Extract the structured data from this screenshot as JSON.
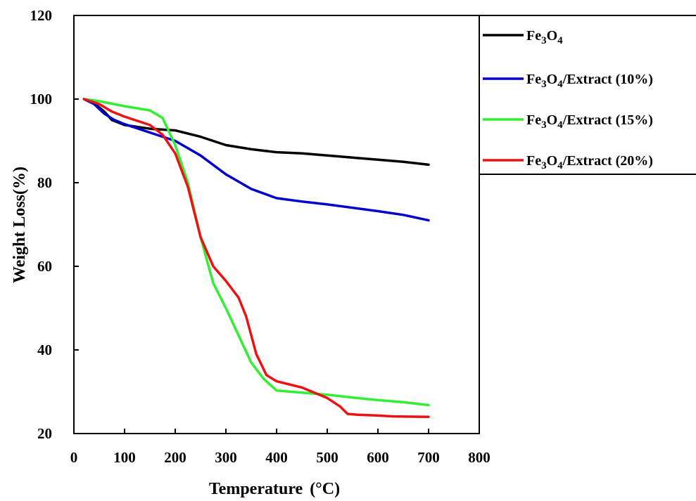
{
  "chart_data": {
    "type": "line",
    "xlabel": "Temperature",
    "xlabel_unit": "(°C)",
    "ylabel": "Weight Loss(%)",
    "xlim": [
      0,
      800
    ],
    "ylim": [
      20,
      120
    ],
    "xticks": [
      0,
      100,
      200,
      300,
      400,
      500,
      600,
      700,
      800
    ],
    "yticks": [
      20,
      40,
      60,
      80,
      100,
      120
    ],
    "grid": false,
    "legend_position": "top-right",
    "series": [
      {
        "name": "Fe3O4",
        "name_parts": [
          "Fe",
          "3",
          "O",
          "4",
          ""
        ],
        "color": "#000000",
        "points": [
          [
            20,
            100
          ],
          [
            40,
            99
          ],
          [
            60,
            97
          ],
          [
            75,
            95
          ],
          [
            100,
            93.8
          ],
          [
            150,
            92.9
          ],
          [
            200,
            92.5
          ],
          [
            250,
            91
          ],
          [
            300,
            89
          ],
          [
            350,
            88
          ],
          [
            400,
            87.3
          ],
          [
            450,
            87
          ],
          [
            500,
            86.5
          ],
          [
            550,
            86
          ],
          [
            600,
            85.5
          ],
          [
            650,
            85
          ],
          [
            700,
            84.3
          ]
        ]
      },
      {
        "name": "Fe3O4/Extract (10%)",
        "name_parts": [
          "Fe",
          "3",
          "O",
          "4",
          "/Extract  (10%)"
        ],
        "color": "#0000cc",
        "points": [
          [
            20,
            100
          ],
          [
            40,
            98.8
          ],
          [
            60,
            96.5
          ],
          [
            80,
            95
          ],
          [
            100,
            94
          ],
          [
            150,
            92
          ],
          [
            200,
            90
          ],
          [
            250,
            86.5
          ],
          [
            300,
            82
          ],
          [
            350,
            78.5
          ],
          [
            400,
            76.3
          ],
          [
            450,
            75.5
          ],
          [
            500,
            74.8
          ],
          [
            550,
            74
          ],
          [
            600,
            73.2
          ],
          [
            650,
            72.3
          ],
          [
            700,
            71
          ]
        ]
      },
      {
        "name": "Fe3O4/Extract (15%)",
        "name_parts": [
          "Fe",
          "3",
          "O",
          "4",
          "/Extract  (15%)"
        ],
        "color": "#33ee33",
        "points": [
          [
            20,
            100
          ],
          [
            50,
            99.5
          ],
          [
            100,
            98.3
          ],
          [
            150,
            97.3
          ],
          [
            175,
            95.5
          ],
          [
            200,
            89
          ],
          [
            225,
            80
          ],
          [
            250,
            67
          ],
          [
            275,
            56
          ],
          [
            300,
            50
          ],
          [
            325,
            43.5
          ],
          [
            350,
            37
          ],
          [
            375,
            33
          ],
          [
            400,
            30.3
          ],
          [
            450,
            29.8
          ],
          [
            500,
            29.3
          ],
          [
            550,
            28.6
          ],
          [
            600,
            28
          ],
          [
            650,
            27.5
          ],
          [
            700,
            26.8
          ]
        ]
      },
      {
        "name": "Fe3O4/Extract (20%)",
        "name_parts": [
          "Fe",
          "3",
          "O",
          "4",
          "/Extract  (20%)"
        ],
        "color": "#ee1111",
        "points": [
          [
            20,
            100
          ],
          [
            50,
            98.8
          ],
          [
            75,
            97
          ],
          [
            100,
            95.8
          ],
          [
            150,
            93.8
          ],
          [
            175,
            91.5
          ],
          [
            200,
            87
          ],
          [
            225,
            79
          ],
          [
            250,
            67
          ],
          [
            275,
            60
          ],
          [
            300,
            56.5
          ],
          [
            325,
            52.5
          ],
          [
            340,
            48
          ],
          [
            360,
            39
          ],
          [
            380,
            34
          ],
          [
            400,
            32.5
          ],
          [
            450,
            31
          ],
          [
            500,
            28.5
          ],
          [
            525,
            26.5
          ],
          [
            540,
            24.7
          ],
          [
            560,
            24.5
          ],
          [
            600,
            24.3
          ],
          [
            630,
            24.1
          ],
          [
            700,
            24
          ]
        ]
      }
    ]
  }
}
